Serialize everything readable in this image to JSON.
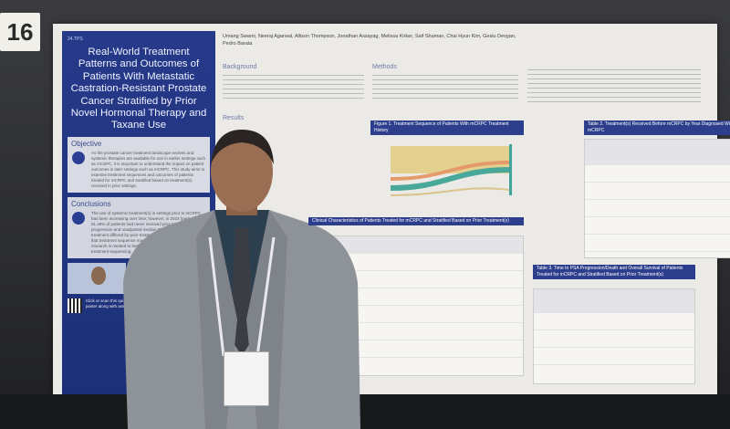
{
  "booth_number": "16",
  "poster": {
    "code": "24.TPS",
    "title": "Real-World Treatment Patterns and Outcomes of Patients With Metastatic Castration-Resistant Prostate Cancer Stratified by Prior Novel Hormonal Therapy and Taxane Use",
    "authors": "Umang Swami, Neeraj Agarwal, Allison Thompson, Jonathan Assayag, Melissa Kirker, Saif Shaman, Chai Hyun Kim, Gesiu Devgan, Pedro Barata",
    "sections": {
      "objective": "Objective",
      "conclusions": "Conclusions",
      "background": "Background",
      "methods": "Methods",
      "results": "Results"
    },
    "objective_text": "As the prostate cancer treatment landscape evolves and systemic therapies are available for use in earlier settings such as mCSPC, it is important to understand the impact on patient outcomes in later settings such as mCRPC. This study aims to examine treatment sequences and outcomes of patients treated for mCRPC and stratified based on treatment(s) received in prior settings.",
    "conclusions_text": "The use of systemic treatment(s) in settings prior to mCRPC has been increasing over time; however, in 2023 (partially) 51.49% of patients had never received prior NHT. PSA progression and unadjusted median OS from mCRPC 1L treatment differed by prior treatment(s) received, suggesting that treatment sequence may impact outcomes. Additional research is needed to better understand the impact of treatment sequencing.",
    "qr_text": "Click or scan this quick response (QR) code to download this poster along with associated material",
    "figure1_caption": "Figure 1. Treatment Sequence of Patients With mCRPC Treatment History",
    "table1_caption": "Clinical Characteristics of Patients Treated for mCRPC and Stratified Based on Prior Treatment(s)",
    "table2_caption": "Table 2. Treatment(s) Received Before mCRPC by Year Diagnosed With mCRPC",
    "table3_caption": "Table 3. Time to PSA Progression/Death and Overall Survival of Patients Treated for mCRPC and Stratified Based on Prior Treatment(s)"
  },
  "colors": {
    "poster_blue": "#263a8a",
    "poster_bg": "#eceae6"
  }
}
